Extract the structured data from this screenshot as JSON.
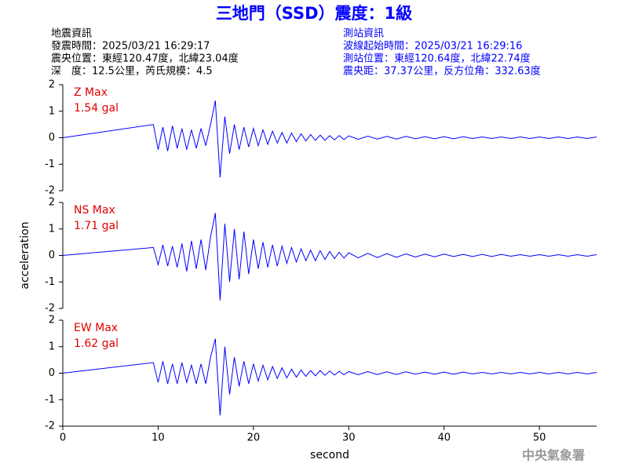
{
  "header": {
    "title": "三地門（SSD）震度：1級",
    "left": [
      "地震資訊",
      "發震時間：2025/03/21 16:29:17",
      "震央位置：東經120.47度，北緯23.04度",
      "深　度：12.5公里，芮氏規模：4.5"
    ],
    "right": [
      "測站資訊",
      "波線起始時間：2025/03/21 16:29:16",
      "測站位置：東經120.64度，北緯22.74度",
      "震央距：37.37公里，反方位角：332.63度"
    ],
    "watermark": "中央氣象署"
  },
  "chart_data": [
    {
      "type": "line",
      "max_name": "Z Max",
      "max_text": "1.54 gal",
      "color": "#0000ff",
      "xlim": [
        0,
        56
      ],
      "ylim": [
        -2,
        2
      ],
      "yticks": [
        -2,
        -1,
        0,
        1,
        2
      ],
      "x": [
        0,
        9.5,
        10,
        10.5,
        11,
        11.5,
        12,
        12.5,
        13,
        13.5,
        14,
        14.5,
        15,
        15.5,
        16,
        16.5,
        17,
        17.5,
        18,
        18.5,
        19,
        19.5,
        20,
        20.5,
        21,
        21.5,
        22,
        22.5,
        23,
        23.5,
        24,
        24.5,
        25,
        25.5,
        26,
        26.5,
        27,
        27.5,
        28,
        28.5,
        29,
        29.5,
        30,
        31,
        32,
        33,
        34,
        35,
        36,
        37,
        38,
        39,
        40,
        41,
        42,
        43,
        44,
        45,
        46,
        47,
        48,
        49,
        50,
        51,
        52,
        53,
        54,
        55,
        56
      ],
      "values": [
        0,
        0.5,
        -0.45,
        0.4,
        -0.5,
        0.45,
        -0.4,
        0.35,
        -0.45,
        0.3,
        -0.4,
        0.35,
        -0.3,
        0.5,
        1.4,
        -1.5,
        0.8,
        -0.6,
        0.5,
        -0.45,
        0.4,
        -0.35,
        0.35,
        -0.3,
        0.3,
        -0.25,
        0.25,
        -0.2,
        0.2,
        -0.2,
        0.18,
        -0.15,
        0.15,
        -0.12,
        0.12,
        -0.1,
        0.1,
        -0.1,
        0.08,
        -0.08,
        0.08,
        -0.07,
        0.07,
        -0.06,
        0.06,
        -0.05,
        0.05,
        -0.05,
        0.05,
        -0.04,
        0.04,
        -0.04,
        0.04,
        -0.04,
        0.04,
        -0.03,
        0.03,
        -0.03,
        0.03,
        -0.03,
        0.03,
        -0.03,
        0.03,
        -0.03,
        0.03,
        -0.03,
        0.03,
        -0.03,
        0.03
      ]
    },
    {
      "type": "line",
      "max_name": "NS Max",
      "max_text": "1.71 gal",
      "color": "#0000ff",
      "ylabel": "acceleration",
      "xlim": [
        0,
        56
      ],
      "ylim": [
        -2,
        2
      ],
      "yticks": [
        -2,
        -1,
        0,
        1,
        2
      ],
      "x": [
        0,
        9.5,
        10,
        10.5,
        11,
        11.5,
        12,
        12.5,
        13,
        13.5,
        14,
        14.5,
        15,
        15.5,
        16,
        16.5,
        17,
        17.5,
        18,
        18.5,
        19,
        19.5,
        20,
        20.5,
        21,
        21.5,
        22,
        22.5,
        23,
        23.5,
        24,
        24.5,
        25,
        25.5,
        26,
        26.5,
        27,
        27.5,
        28,
        28.5,
        29,
        29.5,
        30,
        31,
        32,
        33,
        34,
        35,
        36,
        37,
        38,
        39,
        40,
        41,
        42,
        43,
        44,
        45,
        46,
        47,
        48,
        49,
        50,
        51,
        52,
        53,
        54,
        55,
        56
      ],
      "values": [
        0,
        0.3,
        -0.35,
        0.4,
        -0.4,
        0.35,
        -0.45,
        0.45,
        -0.6,
        0.55,
        -0.5,
        0.6,
        -0.55,
        0.7,
        1.6,
        -1.7,
        1.2,
        -1.0,
        1.0,
        -0.9,
        0.9,
        -0.7,
        0.6,
        -0.5,
        0.5,
        -0.45,
        0.4,
        -0.4,
        0.35,
        -0.3,
        0.3,
        -0.25,
        0.25,
        -0.2,
        0.2,
        -0.2,
        0.18,
        -0.15,
        0.15,
        -0.12,
        0.12,
        -0.1,
        0.1,
        -0.09,
        0.08,
        -0.08,
        0.07,
        -0.07,
        0.06,
        -0.06,
        0.05,
        -0.05,
        0.05,
        -0.04,
        0.04,
        -0.04,
        0.04,
        -0.04,
        0.04,
        -0.03,
        0.03,
        -0.03,
        0.03,
        -0.03,
        0.03,
        -0.03,
        0.03,
        -0.03,
        0.03
      ]
    },
    {
      "type": "line",
      "max_name": "EW Max",
      "max_text": "1.62 gal",
      "color": "#0000ff",
      "xlabel": "second",
      "xlim": [
        0,
        56
      ],
      "ylim": [
        -2,
        2
      ],
      "yticks": [
        -2,
        -1,
        0,
        1,
        2
      ],
      "xticks": [
        0,
        10,
        20,
        30,
        40,
        50
      ],
      "x": [
        0,
        9.5,
        10,
        10.5,
        11,
        11.5,
        12,
        12.5,
        13,
        13.5,
        14,
        14.5,
        15,
        15.5,
        16,
        16.5,
        17,
        17.5,
        18,
        18.5,
        19,
        19.5,
        20,
        20.5,
        21,
        21.5,
        22,
        22.5,
        23,
        23.5,
        24,
        24.5,
        25,
        25.5,
        26,
        26.5,
        27,
        27.5,
        28,
        28.5,
        29,
        29.5,
        30,
        31,
        32,
        33,
        34,
        35,
        36,
        37,
        38,
        39,
        40,
        41,
        42,
        43,
        44,
        45,
        46,
        47,
        48,
        49,
        50,
        51,
        52,
        53,
        54,
        55,
        56
      ],
      "values": [
        0,
        0.4,
        -0.35,
        0.45,
        -0.4,
        0.35,
        -0.4,
        0.4,
        -0.35,
        0.3,
        -0.4,
        0.35,
        -0.4,
        0.6,
        1.3,
        -1.6,
        1.0,
        -0.8,
        0.6,
        -0.5,
        0.45,
        -0.4,
        0.35,
        -0.3,
        0.3,
        -0.25,
        0.25,
        -0.2,
        0.2,
        -0.18,
        0.15,
        -0.15,
        0.12,
        -0.12,
        0.1,
        -0.1,
        0.1,
        -0.08,
        0.08,
        -0.07,
        0.07,
        -0.06,
        0.06,
        -0.06,
        0.06,
        -0.05,
        0.05,
        -0.05,
        0.05,
        -0.04,
        0.04,
        -0.04,
        0.04,
        -0.04,
        0.04,
        -0.03,
        0.03,
        -0.03,
        0.03,
        -0.03,
        0.03,
        -0.03,
        0.03,
        -0.03,
        0.03,
        -0.03,
        0.03,
        -0.03,
        0.03
      ]
    }
  ]
}
